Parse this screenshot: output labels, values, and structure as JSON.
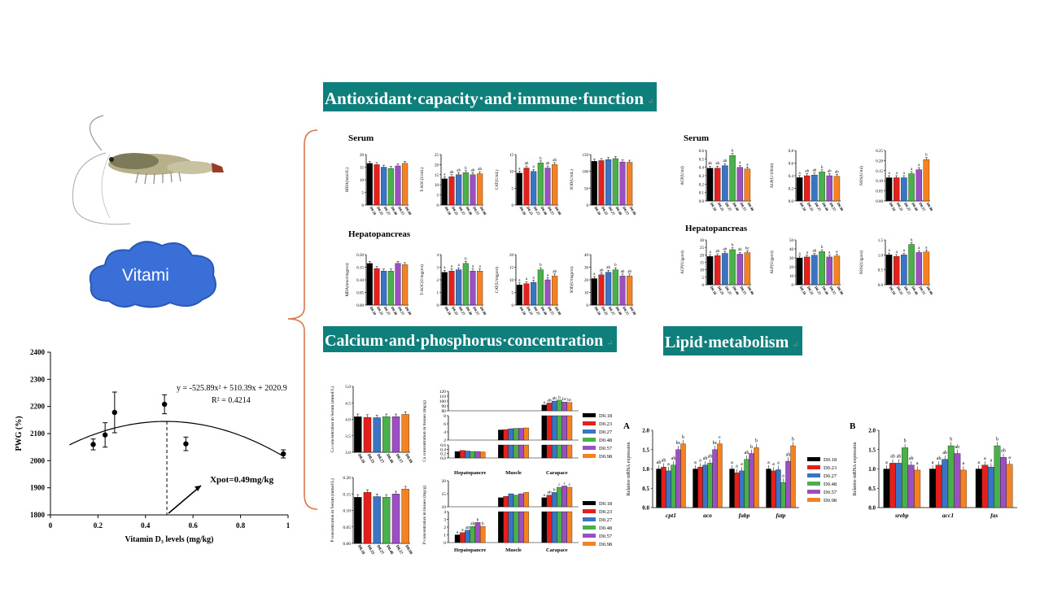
{
  "titles": {
    "antioxidant": "Antioxidant·capacity·and·immune·function",
    "calcium": "Calcium·and·phosphorus·concentration",
    "lipid": "Lipid·metabolism",
    "para_mark": "↵"
  },
  "subheads": {
    "serum": "Serum",
    "hepatopancreas": "Hepatopancreas"
  },
  "cloud_label": "Vitami",
  "groups": [
    "D0.18",
    "D0.23",
    "D0.27",
    "D0.48",
    "D0.57",
    "D0.98"
  ],
  "colors": [
    "#000000",
    "#e3201b",
    "#3a74c4",
    "#4ab04a",
    "#9b4fc0",
    "#f58220"
  ],
  "panel_labels": {
    "A": "A",
    "B": "B"
  },
  "chart_data": [
    {
      "type": "scatter",
      "id": "pwg",
      "xlabel": "Vitamin D₃ levels (mg/kg)",
      "ylabel": "PWG (%)",
      "xlim": [
        0,
        1
      ],
      "ylim": [
        1800,
        2400
      ],
      "xticks": [
        "0",
        "0.2",
        "0.4",
        "0.6",
        "0.8",
        "1"
      ],
      "yticks": [
        "1800",
        "1900",
        "2000",
        "2100",
        "2200",
        "2300",
        "2400"
      ],
      "points": [
        {
          "x": 0.18,
          "y": 2060,
          "err": 20
        },
        {
          "x": 0.23,
          "y": 2095,
          "err": 45
        },
        {
          "x": 0.27,
          "y": 2178,
          "err": 75
        },
        {
          "x": 0.48,
          "y": 2208,
          "err": 35
        },
        {
          "x": 0.57,
          "y": 2062,
          "err": 25
        },
        {
          "x": 0.98,
          "y": 2025,
          "err": 15
        }
      ],
      "fit": {
        "a": -525.89,
        "b": 510.39,
        "c": 2020.9
      },
      "equation": "y = -525.89x² + 510.39x + 2020.9",
      "r2": "R² = 0.4214",
      "xpot_label": "Xpot=0.49mg/kg",
      "xpot": 0.49
    },
    {
      "type": "bar",
      "id": "s_mda",
      "ylabel": "MDA(nmol/L)",
      "yticks": [
        "0",
        "5",
        "10",
        "15",
        "20"
      ],
      "ylim": [
        0,
        20
      ],
      "values": [
        16.5,
        16,
        15,
        14.5,
        15.5,
        16.5
      ],
      "letters": []
    },
    {
      "type": "bar",
      "id": "s_taoc",
      "ylabel": "T-AOC(U/mL)",
      "yticks": [
        "0",
        "5",
        "10",
        "15",
        "20",
        "25"
      ],
      "ylim": [
        0,
        25
      ],
      "values": [
        13,
        14,
        15,
        16,
        15,
        15.5
      ],
      "letters": [
        "a",
        "ab",
        "ab",
        "b",
        "ab",
        "ab"
      ]
    },
    {
      "type": "bar",
      "id": "s_cat",
      "ylabel": "CAT(U/mL)",
      "yticks": [
        "0",
        "5",
        "10",
        "15"
      ],
      "ylim": [
        0,
        15
      ],
      "values": [
        9.5,
        11,
        10,
        12.5,
        11,
        12
      ],
      "letters": [
        "a",
        "ab",
        "a",
        "b",
        "ab",
        "ab"
      ]
    },
    {
      "type": "bar",
      "id": "s_sod",
      "ylabel": "SOD(U/mL)",
      "yticks": [
        "0",
        "50",
        "100",
        "150"
      ],
      "ylim": [
        0,
        150
      ],
      "values": [
        130,
        132,
        135,
        138,
        128,
        127
      ],
      "letters": []
    },
    {
      "type": "bar",
      "id": "s_acp",
      "ylabel": "ACP(U/ml)",
      "yticks": [
        "0.0",
        "0.1",
        "0.2",
        "0.3",
        "0.4",
        "0.5",
        "0.6"
      ],
      "ylim": [
        0,
        0.6
      ],
      "values": [
        0.39,
        0.39,
        0.42,
        0.54,
        0.4,
        0.38
      ],
      "letters": [
        "ab",
        "ab",
        "ab",
        "b",
        "a",
        "a"
      ]
    },
    {
      "type": "bar",
      "id": "s_alp",
      "ylabel": "ALP(U/100ml)",
      "yticks": [
        "0.0",
        "0.2",
        "0.4",
        "0.6",
        "0.8"
      ],
      "ylim": [
        0,
        0.8
      ],
      "values": [
        0.37,
        0.4,
        0.41,
        0.46,
        0.4,
        0.39
      ],
      "letters": [
        "a",
        "ab",
        "ab",
        "b",
        "ab",
        "ab"
      ]
    },
    {
      "type": "bar",
      "id": "s_nos",
      "ylabel": "NOS(U/ml)",
      "yticks": [
        "0.00",
        "0.05",
        "0.10",
        "0.15",
        "0.20",
        "0.25"
      ],
      "ylim": [
        0,
        0.25
      ],
      "values": [
        0.115,
        0.115,
        0.115,
        0.135,
        0.155,
        0.205
      ],
      "letters": [
        "a",
        "a",
        "a",
        "a",
        "a",
        "b"
      ]
    },
    {
      "type": "bar",
      "id": "h_mda",
      "ylabel": "MDA(nmol/mgprot)",
      "yticks": [
        "0.00",
        "0.05",
        "0.10",
        "0.15",
        "0.20"
      ],
      "ylim": [
        0,
        0.2
      ],
      "values": [
        0.165,
        0.145,
        0.135,
        0.135,
        0.165,
        0.16
      ],
      "letters": []
    },
    {
      "type": "bar",
      "id": "h_taoc",
      "ylabel": "T-AOC(U/mgprot)",
      "yticks": [
        "0",
        "1",
        "2",
        "3",
        "4"
      ],
      "ylim": [
        0,
        4
      ],
      "values": [
        2.6,
        2.7,
        2.8,
        3.3,
        2.7,
        2.7
      ],
      "letters": [
        "a",
        "a",
        "a",
        "b",
        "a",
        "a"
      ]
    },
    {
      "type": "bar",
      "id": "h_cat",
      "ylabel": "CAT(U/mgprot)",
      "yticks": [
        "0",
        "5",
        "10",
        "15",
        "20"
      ],
      "ylim": [
        0,
        20
      ],
      "values": [
        8,
        8.5,
        9,
        14,
        10,
        11.5
      ],
      "letters": [
        "a",
        "a",
        "a",
        "b",
        "a",
        "ab"
      ]
    },
    {
      "type": "bar",
      "id": "h_sod",
      "ylabel": "SOD(U/mgprot)",
      "yticks": [
        "0",
        "10",
        "20",
        "30",
        "40"
      ],
      "ylim": [
        0,
        40
      ],
      "values": [
        21,
        24,
        26,
        28,
        23,
        23
      ],
      "letters": [
        "a",
        "ab",
        "ab",
        "b",
        "ab",
        "ab"
      ]
    },
    {
      "type": "bar",
      "id": "h_acp",
      "ylabel": "ACP(U/gprot)",
      "yticks": [
        "0",
        "5",
        "10",
        "15",
        "20",
        "25",
        "30"
      ],
      "ylim": [
        0,
        30
      ],
      "values": [
        19,
        19.5,
        21,
        23.5,
        20.5,
        21.5
      ],
      "letters": [
        "a",
        "ab",
        "ab",
        "b",
        "ab",
        "bc"
      ]
    },
    {
      "type": "bar",
      "id": "h_alp",
      "ylabel": "ALP(U/gprot)",
      "yticks": [
        "0",
        "10",
        "20",
        "30",
        "40",
        "50"
      ],
      "ylim": [
        0,
        50
      ],
      "values": [
        30,
        31,
        33,
        37,
        31,
        32
      ],
      "letters": [
        "a",
        "a",
        "ab",
        "b",
        "a",
        "a"
      ]
    },
    {
      "type": "bar",
      "id": "h_nos",
      "ylabel": "NOS(U/gprot)",
      "yticks": [
        "0.0",
        "0.5",
        "1.0",
        "1.5"
      ],
      "ylim": [
        0,
        1.5
      ],
      "values": [
        1.0,
        0.95,
        1.0,
        1.35,
        1.08,
        1.1
      ],
      "letters": [
        "a",
        "a",
        "a",
        "b",
        "a",
        "a"
      ]
    },
    {
      "type": "bar",
      "id": "ca_serum",
      "ylabel": "Ca concentration in Serum (mmol/L)",
      "yticks": [
        "3.0",
        "3.5",
        "4.0",
        "4.5",
        "5.0"
      ],
      "ylim": [
        3,
        5
      ],
      "values": [
        4.08,
        4.06,
        4.05,
        4.08,
        4.08,
        4.15
      ],
      "letters": []
    },
    {
      "type": "bar",
      "id": "p_serum",
      "ylabel": "P concentration in Serum (mmol/L)",
      "yticks": [
        "0.00",
        "0.05",
        "0.10",
        "0.15",
        "0.20"
      ],
      "ylim": [
        0,
        0.2
      ],
      "values": [
        0.14,
        0.155,
        0.142,
        0.14,
        0.15,
        0.165
      ],
      "letters": []
    },
    {
      "type": "bar",
      "id": "ca_tissue",
      "ylabel": "Ca concentration in tissues (mg/g)",
      "categories": [
        "Hepatopancre",
        "Muscle",
        "Carapace"
      ],
      "values": [
        [
          0.3,
          0.35,
          0.32,
          0.3,
          0.3,
          0.28
        ],
        [
          4.5,
          4.6,
          4.8,
          4.9,
          4.9,
          5.0
        ],
        [
          92,
          96,
          100,
          102,
          98,
          97
        ]
      ],
      "letters": [
        [],
        [],
        [
          "a",
          "ab",
          "ab",
          "b",
          "bc",
          "bc"
        ]
      ],
      "segments": [
        {
          "range": [
            0,
            0.6
          ],
          "ticks": [
            "0.0",
            "0.2",
            "0.4",
            "0.6"
          ]
        },
        {
          "range": [
            2,
            8
          ],
          "ticks": [
            "2",
            "4",
            "6",
            "8"
          ]
        },
        {
          "range": [
            80,
            120
          ],
          "ticks": [
            "80",
            "90",
            "100",
            "110",
            "120"
          ]
        }
      ]
    },
    {
      "type": "bar",
      "id": "p_tissue",
      "ylabel": "P concentration in tissues (mg/g)",
      "categories": [
        "Hepatopancre",
        "Muscle",
        "Carapace"
      ],
      "values": [
        [
          1.0,
          1.3,
          1.6,
          2.1,
          2.6,
          2.1
        ],
        [
          13.5,
          14,
          15,
          14.5,
          15,
          15.5
        ],
        [
          13.5,
          14.5,
          15.5,
          17.5,
          18,
          17.5
        ]
      ],
      "letters": [
        [
          "a",
          "a",
          "ab",
          "ab",
          "b",
          "b"
        ],
        [],
        [
          "a",
          "ab",
          "b",
          "c",
          "c",
          "c"
        ]
      ],
      "segments": [
        {
          "range": [
            0,
            4
          ],
          "ticks": [
            "0",
            "1",
            "2",
            "3",
            "4"
          ]
        },
        {
          "range": [
            10,
            20
          ],
          "ticks": [
            "10",
            "15",
            "20"
          ]
        }
      ]
    },
    {
      "type": "bar",
      "id": "gene_a",
      "panel": "A",
      "ylabel": "Relative mRNA expression",
      "yticks": [
        "0.0",
        "0.5",
        "1.0",
        "1.5",
        "2.0"
      ],
      "ylim": [
        0,
        2
      ],
      "categories": [
        "cpt1",
        "aco",
        "fabp",
        "fatp"
      ],
      "values": [
        [
          1.0,
          1.05,
          0.95,
          1.1,
          1.5,
          1.65
        ],
        [
          1.0,
          1.05,
          1.1,
          1.15,
          1.5,
          1.65
        ],
        [
          1.0,
          0.9,
          0.95,
          1.25,
          1.4,
          1.55
        ],
        [
          1.0,
          0.95,
          0.98,
          0.65,
          1.2,
          1.6
        ]
      ],
      "letters": [
        [
          "ab",
          "ab",
          "a",
          "ab",
          "bc",
          "b"
        ],
        [
          "a",
          "a",
          "ab",
          "ab",
          "bc",
          "c"
        ],
        [
          "a",
          "a",
          "a",
          "ab",
          "b",
          "b"
        ],
        [
          "a",
          "a",
          "a",
          "a",
          "ab",
          "b"
        ]
      ]
    },
    {
      "type": "bar",
      "id": "gene_b",
      "panel": "B",
      "ylabel": "Relative mRNA expression",
      "yticks": [
        "0.0",
        "0.5",
        "1.0",
        "1.5",
        "2.0"
      ],
      "ylim": [
        0,
        2
      ],
      "categories": [
        "srebp",
        "acc1",
        "fas"
      ],
      "values": [
        [
          1.0,
          1.15,
          1.15,
          1.55,
          1.1,
          0.97
        ],
        [
          1.0,
          1.1,
          1.25,
          1.6,
          1.4,
          0.97
        ],
        [
          1.0,
          1.1,
          1.05,
          1.6,
          1.3,
          1.12
        ]
      ],
      "letters": [
        [
          "a",
          "ab",
          "ab",
          "b",
          "ab",
          "a"
        ],
        [
          "a",
          "ab",
          "ab",
          "b",
          "ab",
          "a"
        ],
        [
          "a",
          "a",
          "a",
          "b",
          "ab",
          "a"
        ]
      ]
    }
  ]
}
